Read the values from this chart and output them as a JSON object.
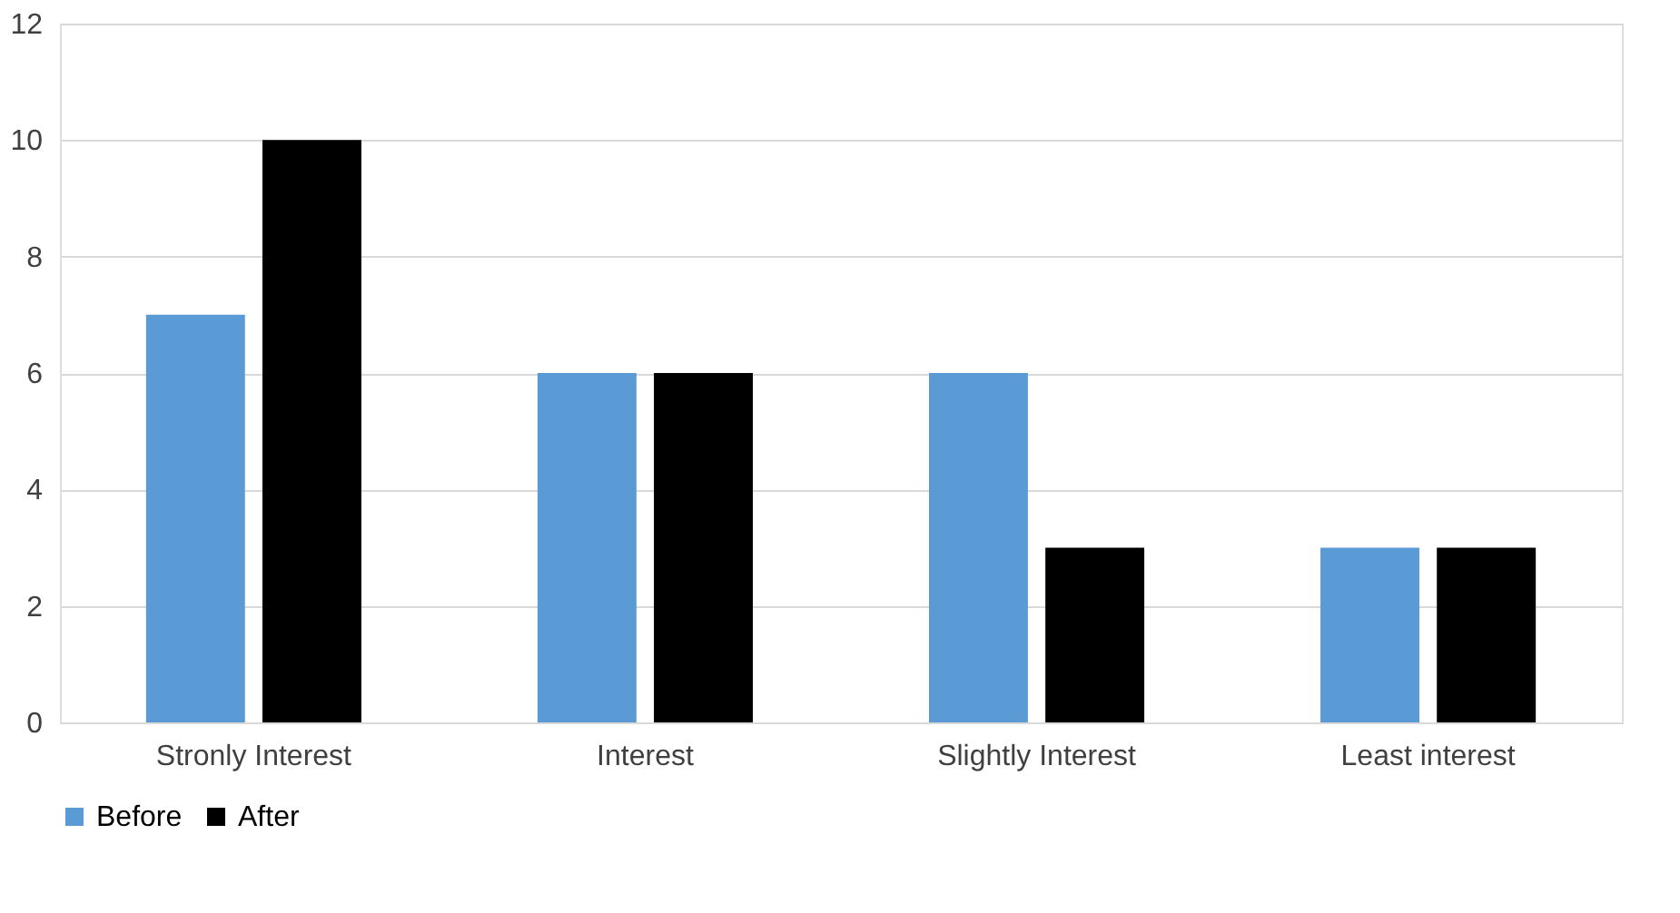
{
  "chart_data": {
    "type": "bar",
    "categories": [
      "Stronly Interest",
      "Interest",
      "Slightly Interest",
      "Least interest"
    ],
    "series": [
      {
        "name": "Before",
        "color": "#5b9bd5",
        "values": [
          7,
          6,
          6,
          3
        ]
      },
      {
        "name": "After",
        "color": "#000000",
        "values": [
          10,
          6,
          3,
          3
        ]
      }
    ],
    "ylim": [
      0,
      12
    ],
    "yticks": [
      0,
      2,
      4,
      6,
      8,
      10,
      12
    ],
    "grid": "y",
    "legend": "bottom"
  }
}
